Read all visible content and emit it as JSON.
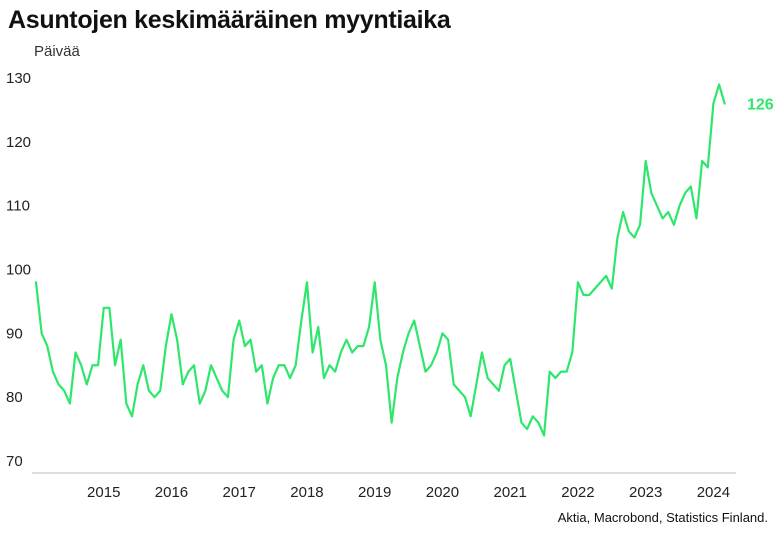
{
  "title": "Asuntojen keskimääräinen myyntiaika",
  "source": "Aktia, Macrobond, Statistics Finland.",
  "colors": {
    "series": "#2ee66b",
    "axis": "#bbbbbb",
    "text": "#222222"
  },
  "chart_data": {
    "type": "line",
    "title": "Asuntojen keskimääräinen myyntiaika",
    "ylabel": "Päivää",
    "xlabel": "",
    "ylim": [
      70,
      130
    ],
    "yticks": [
      70,
      80,
      90,
      100,
      110,
      120,
      130
    ],
    "xlim": [
      "2014-07",
      "2024-11"
    ],
    "xtick_labels": [
      "2015",
      "2016",
      "2017",
      "2018",
      "2019",
      "2020",
      "2021",
      "2022",
      "2023",
      "2024"
    ],
    "grid": false,
    "legend": "none",
    "end_label": "126",
    "series": [
      {
        "color": "#2ee66b",
        "points": [
          [
            "2014-07",
            98
          ],
          [
            "2014-08",
            90
          ],
          [
            "2014-09",
            88
          ],
          [
            "2014-10",
            84
          ],
          [
            "2014-11",
            82
          ],
          [
            "2014-12",
            81
          ],
          [
            "2015-01",
            79
          ],
          [
            "2015-02",
            87
          ],
          [
            "2015-03",
            85
          ],
          [
            "2015-04",
            82
          ],
          [
            "2015-05",
            85
          ],
          [
            "2015-06",
            85
          ],
          [
            "2015-07",
            94
          ],
          [
            "2015-08",
            94
          ],
          [
            "2015-09",
            85
          ],
          [
            "2015-10",
            89
          ],
          [
            "2015-11",
            79
          ],
          [
            "2015-12",
            77
          ],
          [
            "2016-01",
            82
          ],
          [
            "2016-02",
            85
          ],
          [
            "2016-03",
            81
          ],
          [
            "2016-04",
            80
          ],
          [
            "2016-05",
            81
          ],
          [
            "2016-06",
            88
          ],
          [
            "2016-07",
            93
          ],
          [
            "2016-08",
            89
          ],
          [
            "2016-09",
            82
          ],
          [
            "2016-10",
            84
          ],
          [
            "2016-11",
            85
          ],
          [
            "2016-12",
            79
          ],
          [
            "2017-01",
            81
          ],
          [
            "2017-02",
            85
          ],
          [
            "2017-03",
            83
          ],
          [
            "2017-04",
            81
          ],
          [
            "2017-05",
            80
          ],
          [
            "2017-06",
            89
          ],
          [
            "2017-07",
            92
          ],
          [
            "2017-08",
            88
          ],
          [
            "2017-09",
            89
          ],
          [
            "2017-10",
            84
          ],
          [
            "2017-11",
            85
          ],
          [
            "2017-12",
            79
          ],
          [
            "2018-01",
            83
          ],
          [
            "2018-02",
            85
          ],
          [
            "2018-03",
            85
          ],
          [
            "2018-04",
            83
          ],
          [
            "2018-05",
            85
          ],
          [
            "2018-06",
            92
          ],
          [
            "2018-07",
            98
          ],
          [
            "2018-08",
            87
          ],
          [
            "2018-09",
            91
          ],
          [
            "2018-10",
            83
          ],
          [
            "2018-11",
            85
          ],
          [
            "2018-12",
            84
          ],
          [
            "2019-01",
            87
          ],
          [
            "2019-02",
            89
          ],
          [
            "2019-03",
            87
          ],
          [
            "2019-04",
            88
          ],
          [
            "2019-05",
            88
          ],
          [
            "2019-06",
            91
          ],
          [
            "2019-07",
            98
          ],
          [
            "2019-08",
            89
          ],
          [
            "2019-09",
            85
          ],
          [
            "2019-10",
            76
          ],
          [
            "2019-11",
            83
          ],
          [
            "2019-12",
            87
          ],
          [
            "2020-01",
            90
          ],
          [
            "2020-02",
            92
          ],
          [
            "2020-03",
            88
          ],
          [
            "2020-04",
            84
          ],
          [
            "2020-05",
            85
          ],
          [
            "2020-06",
            87
          ],
          [
            "2020-07",
            90
          ],
          [
            "2020-08",
            89
          ],
          [
            "2020-09",
            82
          ],
          [
            "2020-10",
            81
          ],
          [
            "2020-11",
            80
          ],
          [
            "2020-12",
            77
          ],
          [
            "2021-01",
            82
          ],
          [
            "2021-02",
            87
          ],
          [
            "2021-03",
            83
          ],
          [
            "2021-04",
            82
          ],
          [
            "2021-05",
            81
          ],
          [
            "2021-06",
            85
          ],
          [
            "2021-07",
            86
          ],
          [
            "2021-08",
            81
          ],
          [
            "2021-09",
            76
          ],
          [
            "2021-10",
            75
          ],
          [
            "2021-11",
            77
          ],
          [
            "2021-12",
            76
          ],
          [
            "2022-01",
            74
          ],
          [
            "2022-02",
            84
          ],
          [
            "2022-03",
            83
          ],
          [
            "2022-04",
            84
          ],
          [
            "2022-05",
            84
          ],
          [
            "2022-06",
            87
          ],
          [
            "2022-07",
            98
          ],
          [
            "2022-08",
            96
          ],
          [
            "2022-09",
            96
          ],
          [
            "2022-10",
            97
          ],
          [
            "2022-11",
            98
          ],
          [
            "2022-12",
            99
          ],
          [
            "2023-01",
            97
          ],
          [
            "2023-02",
            105
          ],
          [
            "2023-03",
            109
          ],
          [
            "2023-04",
            106
          ],
          [
            "2023-05",
            105
          ],
          [
            "2023-06",
            107
          ],
          [
            "2023-07",
            117
          ],
          [
            "2023-08",
            112
          ],
          [
            "2023-09",
            110
          ],
          [
            "2023-10",
            108
          ],
          [
            "2023-11",
            109
          ],
          [
            "2023-12",
            107
          ],
          [
            "2024-01",
            110
          ],
          [
            "2024-02",
            112
          ],
          [
            "2024-03",
            113
          ],
          [
            "2024-04",
            108
          ],
          [
            "2024-05",
            117
          ],
          [
            "2024-06",
            116
          ],
          [
            "2024-07",
            126
          ],
          [
            "2024-08",
            129
          ],
          [
            "2024-09",
            126
          ]
        ]
      }
    ]
  }
}
